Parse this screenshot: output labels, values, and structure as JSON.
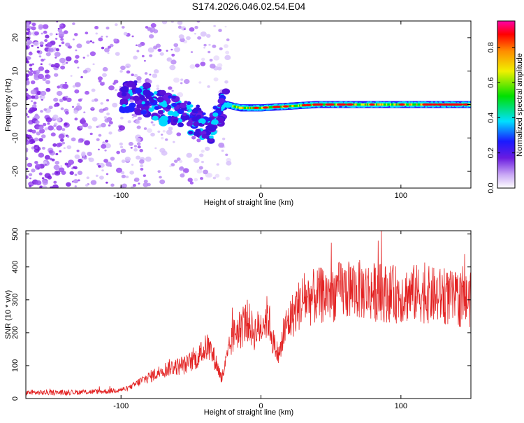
{
  "title": "S174.2026.046.02.54.E04",
  "colors": {
    "noise_purple": "#7a1fe0",
    "snr_line": "#e32222",
    "background": "#ffffff"
  },
  "chart_data": [
    {
      "type": "heatmap",
      "name": "spectrogram",
      "xlabel": "Height of straight line (km)",
      "ylabel": "Frequency (Hz)",
      "xlim": [
        -168,
        150
      ],
      "ylim": [
        -25,
        25
      ],
      "xticks": [
        -100,
        0,
        100
      ],
      "xtick_labels": [
        "-100",
        "0",
        "100"
      ],
      "yticks": [
        20,
        10,
        0,
        -10,
        -20
      ],
      "ytick_labels": [
        "20",
        "10",
        "0",
        "-10",
        "-20"
      ],
      "ridge": [
        {
          "x": -100,
          "y": 3
        },
        {
          "x": -85,
          "y": 2
        },
        {
          "x": -70,
          "y": -1
        },
        {
          "x": -55,
          "y": -3
        },
        {
          "x": -45,
          "y": -5
        },
        {
          "x": -35,
          "y": -7
        },
        {
          "x": -28,
          "y": -1
        },
        {
          "x": -25,
          "y": 0
        },
        {
          "x": -15,
          "y": -1
        },
        {
          "x": 0,
          "y": -1
        },
        {
          "x": 40,
          "y": 0
        },
        {
          "x": 80,
          "y": 0
        },
        {
          "x": 150,
          "y": 0
        }
      ],
      "colorbar": {
        "label": "Normalized spectral amplitude",
        "ticks": [
          0.0,
          0.2,
          0.4,
          0.6,
          0.8
        ],
        "tick_labels": [
          "0.0",
          "0.2",
          "0.4",
          "0.6",
          "0.8"
        ],
        "range": [
          0,
          0.95
        ]
      }
    },
    {
      "type": "line",
      "name": "snr",
      "xlabel": "Height of straight line (km)",
      "ylabel": "SNR (10 * v/v)",
      "xlim": [
        -168,
        150
      ],
      "ylim": [
        0,
        510
      ],
      "xticks": [
        -100,
        0,
        100
      ],
      "xtick_labels": [
        "-100",
        "0",
        "100"
      ],
      "yticks": [
        0,
        100,
        200,
        300,
        400,
        500
      ],
      "ytick_labels": [
        "0",
        "100",
        "200",
        "300",
        "400",
        "500"
      ],
      "series": [
        {
          "name": "SNR",
          "x": [
            -168,
            -140,
            -110,
            -95,
            -85,
            -75,
            -65,
            -55,
            -45,
            -38,
            -33,
            -28,
            -22,
            -18,
            -15,
            -10,
            -5,
            0,
            5,
            10,
            13,
            18,
            25,
            30,
            40,
            50,
            60,
            70,
            80,
            90,
            100,
            110,
            120,
            130,
            140,
            150
          ],
          "values": [
            18,
            18,
            22,
            30,
            55,
            75,
            95,
            100,
            125,
            160,
            120,
            60,
            160,
            210,
            200,
            240,
            200,
            220,
            250,
            150,
            130,
            220,
            270,
            300,
            310,
            320,
            330,
            330,
            325,
            320,
            315,
            320,
            315,
            310,
            300,
            300
          ]
        }
      ]
    }
  ]
}
